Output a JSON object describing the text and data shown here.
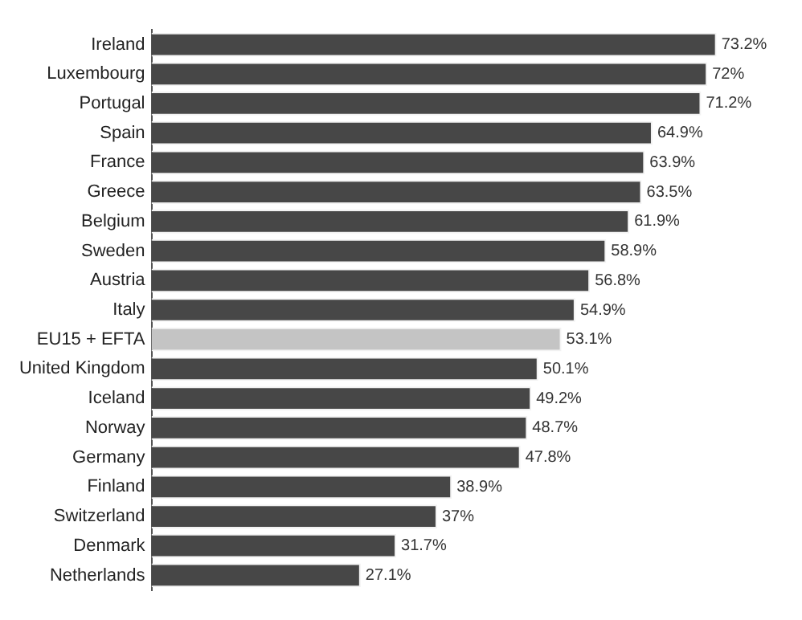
{
  "chart_data": {
    "type": "bar",
    "orientation": "horizontal",
    "categories": [
      "Ireland",
      "Luxembourg",
      "Portugal",
      "Spain",
      "France",
      "Greece",
      "Belgium",
      "Sweden",
      "Austria",
      "Italy",
      "EU15 + EFTA",
      "United Kingdom",
      "Iceland",
      "Norway",
      "Germany",
      "Finland",
      "Switzerland",
      "Denmark",
      "Netherlands"
    ],
    "values": [
      73.2,
      72,
      71.2,
      64.9,
      63.9,
      63.5,
      61.9,
      58.9,
      56.8,
      54.9,
      53.1,
      50.1,
      49.2,
      48.7,
      47.8,
      38.9,
      37,
      31.7,
      27.1
    ],
    "colors": [
      "#474747",
      "#474747",
      "#474747",
      "#474747",
      "#474747",
      "#474747",
      "#474747",
      "#474747",
      "#474747",
      "#474747",
      "#c4c4c4",
      "#474747",
      "#474747",
      "#474747",
      "#474747",
      "#474747",
      "#474747",
      "#474747",
      "#474747"
    ],
    "value_labels": [
      "73.2%",
      "72%",
      "71.2%",
      "64.9%",
      "63.9%",
      "63.5%",
      "61.9%",
      "58.9%",
      "56.8%",
      "54.9%",
      "53.1%",
      "50.1%",
      "49.2%",
      "48.7%",
      "47.8%",
      "38.9%",
      "37%",
      "31.7%",
      "27.1%"
    ],
    "legend": false
  }
}
